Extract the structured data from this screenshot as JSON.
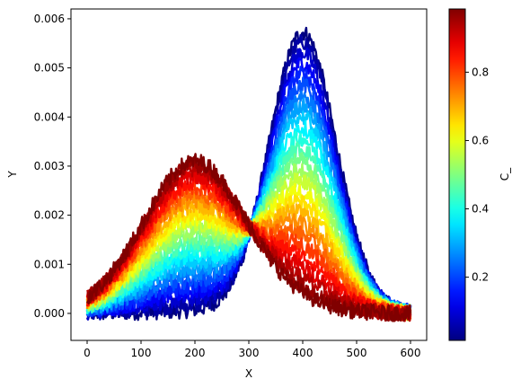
{
  "chart_data": {
    "type": "line",
    "xlabel": "X",
    "ylabel": "Y",
    "xlim": [
      -30,
      630
    ],
    "ylim": [
      -0.00055,
      0.0062
    ],
    "xticks": [
      0,
      100,
      200,
      300,
      400,
      500,
      600
    ],
    "xtick_labels": [
      "0",
      "100",
      "200",
      "300",
      "400",
      "500",
      "600"
    ],
    "yticks": [
      0.0,
      0.001,
      0.002,
      0.003,
      0.004,
      0.005,
      0.006
    ],
    "ytick_labels": [
      "0.000",
      "0.001",
      "0.002",
      "0.003",
      "0.004",
      "0.005",
      "0.006"
    ],
    "x_range": [
      0,
      600
    ],
    "colorbar": {
      "label": "C_",
      "colormap": "jet",
      "range": [
        0.015,
        0.985
      ],
      "ticks": [
        0.2,
        0.4,
        0.6,
        0.8
      ],
      "tick_labels": [
        "0.2",
        "0.4",
        "0.6",
        "0.8"
      ]
    },
    "series_model": {
      "description_values": "Each curve corresponds to a value c of C_ between 0.015 and 0.985; curve shape is a mixture of two Gaussians weighted by c.",
      "peak1": {
        "center": 200,
        "width": 95,
        "amplitude": 0.00315
      },
      "peak2": {
        "center": 400,
        "width": 62,
        "amplitude": 0.0058
      },
      "c_values": [
        0.015,
        0.05,
        0.09,
        0.13,
        0.17,
        0.21,
        0.25,
        0.29,
        0.33,
        0.37,
        0.41,
        0.45,
        0.49,
        0.53,
        0.57,
        0.61,
        0.65,
        0.69,
        0.73,
        0.77,
        0.81,
        0.85,
        0.89,
        0.93,
        0.96,
        0.985
      ]
    }
  }
}
